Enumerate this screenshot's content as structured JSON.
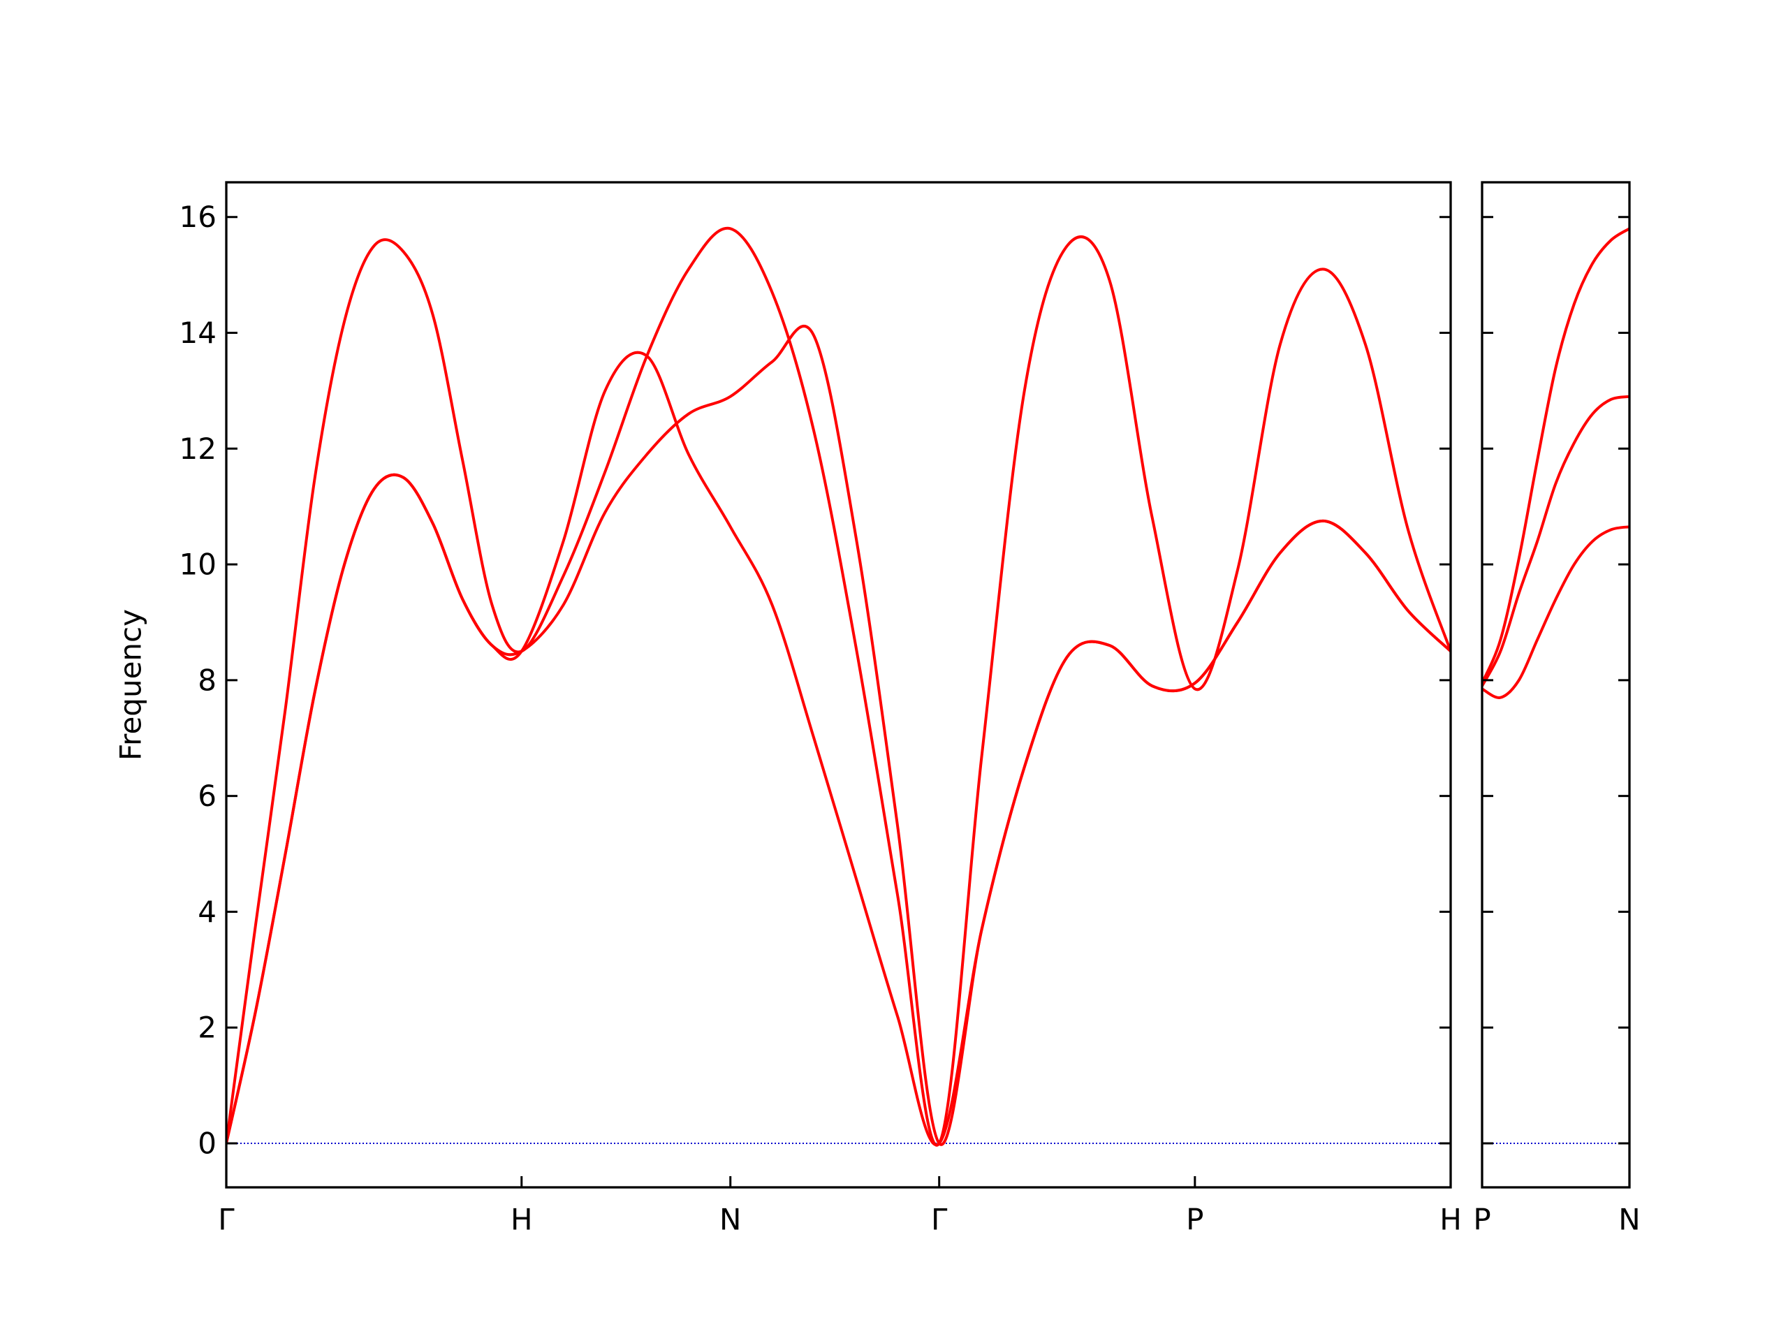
{
  "chart_data": [
    {
      "type": "line",
      "ylabel": "Frequency",
      "x": [
        0,
        0.1,
        0.2,
        0.3,
        0.4,
        0.5,
        0.6,
        0.7,
        0.8,
        0.9,
        1.0,
        1.1414,
        1.2828,
        1.4243,
        1.5657,
        1.7071,
        1.8485,
        1.9899,
        2.1314,
        2.2728,
        2.4142,
        2.5585,
        2.7029,
        2.8472,
        2.9915,
        3.1359,
        3.2802,
        3.4246,
        3.5689,
        3.7133,
        3.8576,
        4.002,
        4.1463
      ],
      "series": [
        {
          "color": "#ff0000",
          "values": [
            0,
            2.3,
            5.0,
            7.8,
            10.0,
            11.3,
            11.5,
            10.7,
            9.4,
            8.6,
            8.5,
            9.3,
            10.9,
            11.9,
            12.6,
            12.9,
            13.5,
            13.95,
            10.5,
            5.5,
            0,
            3.7,
            6.5,
            8.4,
            8.6,
            7.9,
            7.95,
            9.0,
            10.2,
            10.75,
            10.2,
            9.2,
            8.5
          ]
        },
        {
          "color": "#ff0000",
          "values": [
            0,
            2.3,
            5.0,
            7.8,
            10.0,
            11.3,
            11.5,
            10.7,
            9.4,
            8.6,
            8.5,
            10.4,
            13.0,
            13.6,
            11.9,
            10.65,
            9.3,
            7.0,
            4.6,
            2.2,
            0,
            3.7,
            6.5,
            8.4,
            8.6,
            7.9,
            7.95,
            9.0,
            10.2,
            10.75,
            10.2,
            9.2,
            8.5
          ]
        },
        {
          "color": "#ff0000",
          "values": [
            0,
            3.8,
            7.5,
            11.5,
            14.2,
            15.5,
            15.4,
            14.3,
            11.8,
            9.3,
            8.5,
            9.8,
            11.6,
            13.6,
            15.1,
            15.8,
            14.7,
            12.3,
            8.6,
            4.3,
            0,
            6.7,
            13.0,
            15.5,
            14.9,
            10.8,
            7.85,
            9.9,
            13.8,
            15.1,
            13.8,
            10.6,
            8.5
          ]
        }
      ],
      "xlim": [
        0,
        4.1463
      ],
      "xticks": [
        {
          "value": 0,
          "label": "Γ"
        },
        {
          "value": 1,
          "label": "H"
        },
        {
          "value": 1.7071,
          "label": "N"
        },
        {
          "value": 2.4142,
          "label": "Γ"
        },
        {
          "value": 3.2802,
          "label": "P"
        },
        {
          "value": 4.1463,
          "label": "H"
        }
      ],
      "ylim": [
        -0.76,
        16.6
      ],
      "yticks": [
        0,
        2,
        4,
        6,
        8,
        10,
        12,
        14,
        16
      ],
      "hline": 0,
      "hline_color": "#0000cd"
    },
    {
      "type": "line",
      "x": [
        0,
        0.0625,
        0.125,
        0.1875,
        0.25,
        0.3125,
        0.375,
        0.4375,
        0.5
      ],
      "series": [
        {
          "color": "#ff0000",
          "values": [
            7.85,
            7.7,
            8.0,
            8.7,
            9.4,
            10.0,
            10.4,
            10.6,
            10.65
          ]
        },
        {
          "color": "#ff0000",
          "values": [
            7.9,
            8.5,
            9.5,
            10.4,
            11.4,
            12.1,
            12.6,
            12.85,
            12.9
          ]
        },
        {
          "color": "#ff0000",
          "values": [
            7.95,
            8.7,
            10.1,
            11.8,
            13.4,
            14.5,
            15.2,
            15.6,
            15.8
          ]
        }
      ],
      "xlim": [
        0,
        0.5
      ],
      "xticks": [
        {
          "value": 0,
          "label": "P"
        },
        {
          "value": 0.5,
          "label": "N"
        }
      ],
      "ylim": [
        -0.76,
        16.6
      ],
      "yticks": [
        0,
        2,
        4,
        6,
        8,
        10,
        12,
        14,
        16
      ],
      "hline": 0,
      "hline_color": "#0000cd"
    }
  ]
}
